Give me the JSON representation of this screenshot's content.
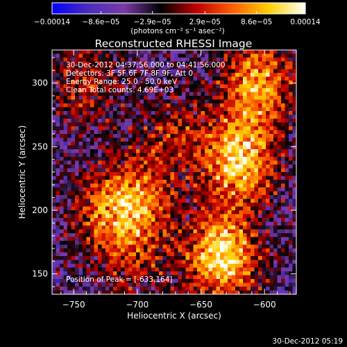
{
  "chart_data": {
    "type": "heatmap",
    "title": "Reconstructed RHESSI Image",
    "xlabel": "Heliocentric X (arcsec)",
    "ylabel": "Heliocentric Y (arcsec)",
    "xlim": [
      -767,
      -575
    ],
    "ylim": [
      134,
      326
    ],
    "x_ticks": [
      -750,
      -700,
      -650,
      -600
    ],
    "x_tick_labels": [
      "−750",
      "−700",
      "−650",
      "−600"
    ],
    "y_ticks": [
      150,
      200,
      250,
      300
    ],
    "y_tick_labels": [
      "150",
      "200",
      "250",
      "300"
    ],
    "colorbar": {
      "min": -0.00014,
      "max": 0.00014,
      "tick_values": [
        -0.00014,
        -8.6e-05,
        -2.9e-05,
        2.9e-05,
        8.6e-05,
        0.00014
      ],
      "tick_labels": [
        "−0.00014",
        "−8.6e−05",
        "−2.9e−05",
        "2.9e−05",
        "8.6e−05",
        "0.00014"
      ],
      "units_label": "(photons cm⁻² s⁻¹ asec⁻²)",
      "colors": [
        "#0000ff",
        "#4a2dbd",
        "#7a3aa8",
        "#000000",
        "#c00000",
        "#ff6000",
        "#ffd000",
        "#ffffff"
      ]
    },
    "info_lines": [
      "30-Dec-2012 04:37:56.000 to 04:41:56.000",
      "Detectors: 3F 5F 6F 7F 8F 9F, Att 0",
      "Energy Range: 25.0 - 50.0 keV",
      "Clean    Total counts: 4.69E+03"
    ],
    "peak_label": "Position of Peak = [-633,164]",
    "peak_position": [
      -633,
      164
    ],
    "grid": false,
    "emission_regions": [
      {
        "x": -633,
        "y": 164,
        "intensity": 1.0
      },
      {
        "x": -620,
        "y": 240,
        "intensity": 0.9
      },
      {
        "x": -605,
        "y": 300,
        "intensity": 0.75
      },
      {
        "x": -700,
        "y": 210,
        "intensity": 0.6
      },
      {
        "x": -725,
        "y": 195,
        "intensity": 0.45
      },
      {
        "x": -740,
        "y": 300,
        "intensity": 0.4
      },
      {
        "x": -670,
        "y": 260,
        "intensity": 0.35
      },
      {
        "x": -700,
        "y": 160,
        "intensity": 0.3
      }
    ]
  },
  "footer_timestamp": "30-Dec-2012 05:19"
}
